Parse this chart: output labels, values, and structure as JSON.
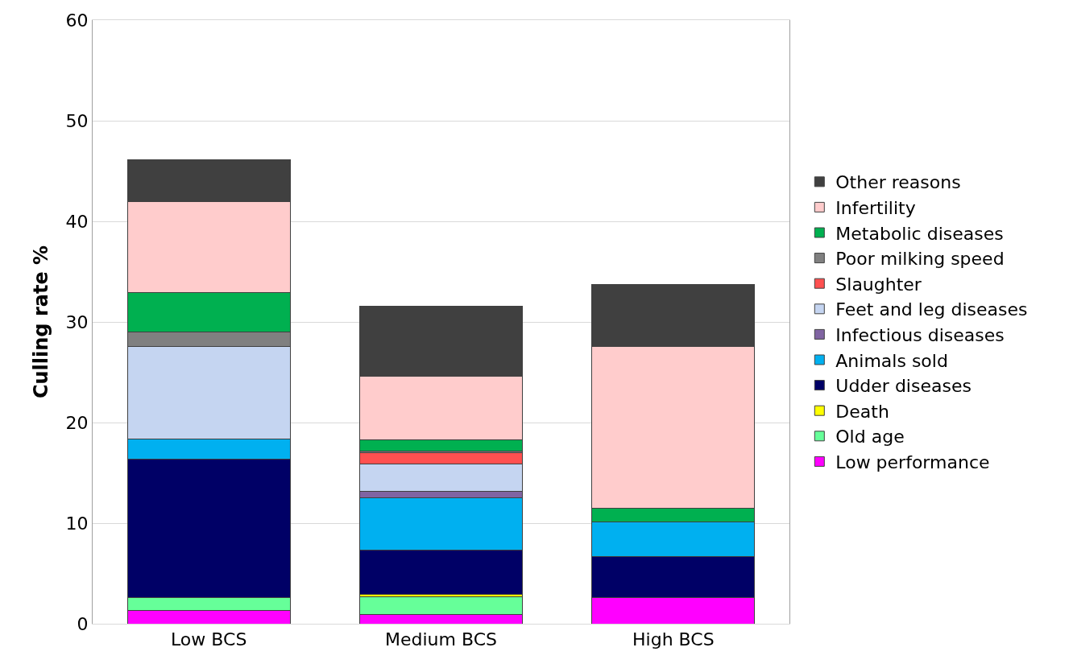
{
  "chart_data": {
    "type": "bar",
    "stacked": true,
    "ylabel": "Culling rate %",
    "categories": [
      "Low BCS",
      "Medium BCS",
      "High BCS"
    ],
    "ylim": [
      0,
      60
    ],
    "yticks": [
      0,
      10,
      20,
      30,
      40,
      50,
      60
    ],
    "grid": "y",
    "legend": "right",
    "series": [
      {
        "name": "Low performance",
        "color": "#ff00ff",
        "values": [
          1.3,
          0.9,
          2.6
        ]
      },
      {
        "name": "Old age",
        "color": "#66ff99",
        "values": [
          1.3,
          1.8,
          0
        ]
      },
      {
        "name": "Death",
        "color": "#ffff00",
        "values": [
          0,
          0.2,
          0
        ]
      },
      {
        "name": "Udder diseases",
        "color": "#000066",
        "values": [
          13.8,
          4.4,
          4.1
        ]
      },
      {
        "name": "Animals sold",
        "color": "#00b0f0",
        "values": [
          2.0,
          5.2,
          3.4
        ]
      },
      {
        "name": "Infectious diseases",
        "color": "#8064a2",
        "values": [
          0,
          0.7,
          0
        ]
      },
      {
        "name": "Feet and leg diseases",
        "color": "#c5d5f1",
        "values": [
          9.2,
          2.7,
          0
        ]
      },
      {
        "name": "Slaughter",
        "color": "#ff5050",
        "values": [
          0,
          1.1,
          0
        ]
      },
      {
        "name": "Poor milking speed",
        "color": "#808080",
        "values": [
          1.4,
          0.2,
          0
        ]
      },
      {
        "name": "Metabolic diseases",
        "color": "#00b050",
        "values": [
          3.9,
          1.1,
          1.4
        ]
      },
      {
        "name": "Infertility",
        "color": "#ffcccc",
        "values": [
          9.1,
          6.3,
          16.1
        ]
      },
      {
        "name": "Other reasons",
        "color": "#404040",
        "values": [
          4.1,
          7.0,
          6.1
        ]
      }
    ]
  }
}
